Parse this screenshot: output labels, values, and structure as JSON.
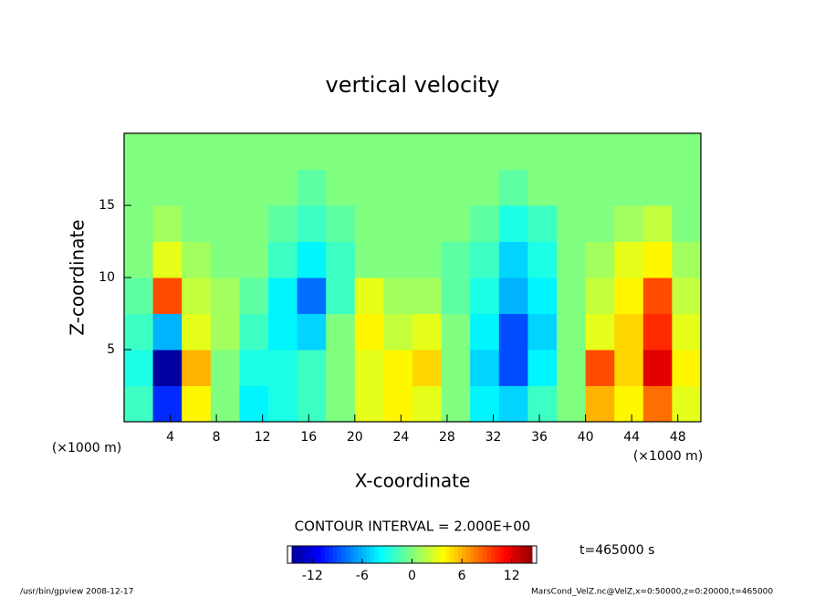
{
  "chart_data": {
    "type": "heatmap",
    "title": "vertical velocity",
    "x_label": "X-coordinate",
    "y_label": "Z-coordinate",
    "x_unit": "(×1000 m)",
    "y_unit": "(×1000 m)",
    "x": [
      1.25,
      3.75,
      6.25,
      8.75,
      11.25,
      13.75,
      16.25,
      18.75,
      21.25,
      23.75,
      26.25,
      28.75,
      31.25,
      33.75,
      36.25,
      38.75,
      41.25,
      43.75,
      46.25,
      48.75
    ],
    "y": [
      1.25,
      3.75,
      6.25,
      8.75,
      11.25,
      13.75,
      16.25,
      18.75
    ],
    "values": [
      [
        -2,
        -10,
        4,
        0,
        -4,
        -3,
        -2,
        0,
        3,
        4,
        3,
        0,
        -4,
        -5,
        -2,
        0,
        6,
        4,
        8,
        3
      ],
      [
        -3,
        -14,
        6,
        0,
        -3,
        -3,
        -2,
        0,
        3,
        4,
        5,
        0,
        -5,
        -9,
        -4,
        0,
        9,
        5,
        12,
        4
      ],
      [
        -2,
        -6,
        3,
        1,
        -2,
        -4,
        -5,
        0,
        4,
        2,
        3,
        0,
        -4,
        -9,
        -5,
        0,
        3,
        5,
        10,
        3
      ],
      [
        -1,
        9,
        2,
        1,
        -1,
        -4,
        -8,
        -2,
        3,
        1,
        1,
        -1,
        -3,
        -6,
        -4,
        0,
        2,
        4,
        9,
        2
      ],
      [
        0,
        3,
        1,
        0,
        0,
        -2,
        -4,
        -2,
        0,
        0,
        0,
        -1,
        -2,
        -5,
        -3,
        0,
        1,
        3,
        4,
        1
      ],
      [
        0,
        1,
        0,
        0,
        0,
        -1,
        -2,
        -1,
        0,
        0,
        0,
        0,
        -1,
        -3,
        -2,
        0,
        0,
        1,
        2,
        0
      ],
      [
        0,
        0,
        0,
        0,
        0,
        0,
        -1,
        0,
        0,
        0,
        0,
        0,
        0,
        -1,
        0,
        0,
        0,
        0,
        0,
        0
      ],
      [
        0,
        0,
        0,
        0,
        0,
        0,
        0,
        0,
        0,
        0,
        0,
        0,
        0,
        0,
        0,
        0,
        0,
        0,
        0,
        0
      ]
    ],
    "xlim": [
      0,
      50
    ],
    "ylim": [
      0,
      20
    ],
    "xticks": [
      4,
      8,
      12,
      16,
      20,
      24,
      28,
      32,
      36,
      40,
      44,
      48
    ],
    "yticks": [
      5,
      10,
      15
    ],
    "colormap": "jet",
    "clim": [
      -15,
      15
    ],
    "cticks": [
      -12,
      -6,
      0,
      6,
      12
    ],
    "contour_interval_label": "CONTOUR INTERVAL = 2.000E+00",
    "time_label": "t=465000 s",
    "footer_left": "/usr/bin/gpview  2008-12-17",
    "footer_right": "MarsCond_VelZ.nc@VelZ,x=0:50000,z=0:20000,t=465000"
  }
}
